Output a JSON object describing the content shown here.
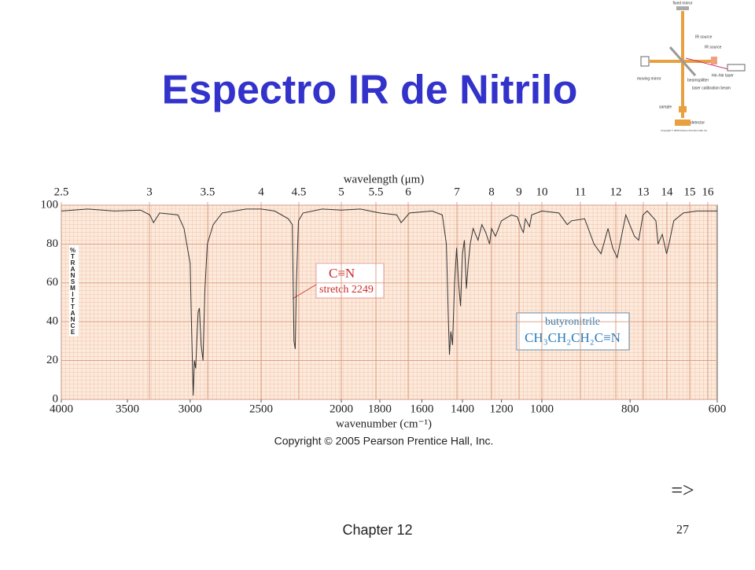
{
  "title": "Espectro IR de Nitrilo",
  "footer": {
    "chapter": "Chapter 12",
    "page": "27",
    "next": "=>"
  },
  "instrument": {
    "labels": [
      "fixed mirror",
      "IR source",
      "IR source",
      "He–Ne laser",
      "moving mirror",
      "beamsplitter",
      "laser calibration beam",
      "sample",
      "detector"
    ],
    "copyright": "Copyright © 2005 Pearson Prentice Hall, Inc."
  },
  "chart_data": {
    "type": "line",
    "x_label": "wavenumber (cm⁻¹)",
    "x2_label": "wavelength (μm)",
    "y_label": "%TRANSMITTANCE",
    "copyright": "Copyright © 2005 Pearson Prentice Hall, Inc.",
    "annotations": [
      "C≡N",
      "stretch 2249",
      "butyronitrile",
      "CH₃CH₂CH₂C≡N"
    ],
    "xlim": [
      4000,
      600
    ],
    "xticks": [
      4000,
      3500,
      3000,
      2500,
      2000,
      1800,
      1600,
      1400,
      1200,
      1000,
      800,
      600
    ],
    "x2ticks": [
      2.5,
      3,
      3.5,
      4,
      4.5,
      5,
      5.5,
      6,
      7,
      8,
      9,
      10,
      11,
      12,
      13,
      14,
      15,
      16
    ],
    "ylim": [
      0,
      100
    ],
    "yticks": [
      0,
      20,
      40,
      60,
      80,
      100
    ],
    "grid": true,
    "color": "#333333",
    "x": [
      4000,
      3800,
      3600,
      3400,
      3330,
      3300,
      3250,
      3100,
      3050,
      3000,
      2990,
      2975,
      2965,
      2955,
      2945,
      2935,
      2925,
      2910,
      2895,
      2880,
      2860,
      2820,
      2760,
      2600,
      2500,
      2400,
      2300,
      2270,
      2258,
      2249,
      2240,
      2225,
      2200,
      2100,
      2000,
      1900,
      1800,
      1720,
      1700,
      1660,
      1550,
      1500,
      1480,
      1470,
      1465,
      1458,
      1450,
      1440,
      1430,
      1420,
      1410,
      1400,
      1390,
      1380,
      1370,
      1360,
      1345,
      1320,
      1300,
      1280,
      1260,
      1250,
      1230,
      1200,
      1150,
      1120,
      1100,
      1090,
      1080,
      1060,
      1050,
      1000,
      960,
      940,
      930,
      900,
      880,
      865,
      850,
      840,
      830,
      810,
      790,
      780,
      770,
      760,
      740,
      735,
      725,
      715,
      710,
      700,
      680,
      650,
      600
    ],
    "values": [
      97,
      98,
      97,
      97.5,
      95,
      91,
      96,
      95,
      88,
      70,
      40,
      2,
      20,
      16,
      30,
      45,
      47,
      28,
      20,
      55,
      80,
      90,
      96,
      98,
      98,
      97,
      93,
      90,
      30,
      26,
      60,
      92,
      96,
      98,
      97.5,
      98,
      96,
      95,
      91,
      96,
      97,
      95,
      80,
      40,
      23,
      35,
      28,
      60,
      78,
      60,
      48,
      75,
      82,
      57,
      70,
      80,
      88,
      82,
      90,
      86,
      80,
      88,
      84,
      92,
      95,
      94,
      88,
      86,
      93,
      89,
      95,
      97,
      96,
      90,
      92,
      93,
      80,
      75,
      88,
      78,
      73,
      95,
      84,
      82,
      95,
      97,
      92,
      80,
      85,
      75,
      80,
      92,
      96,
      97,
      97
    ]
  }
}
